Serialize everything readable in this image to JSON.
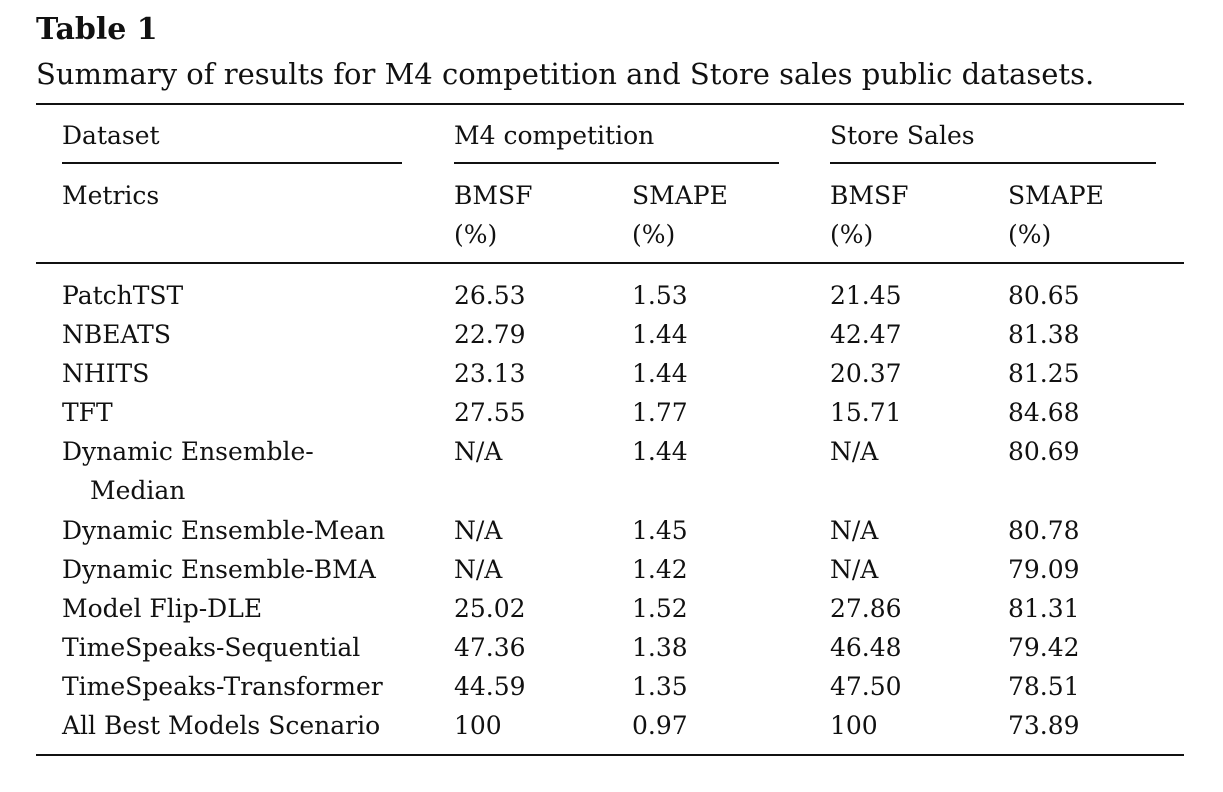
{
  "caption": {
    "label": "Table 1",
    "text": "Summary of results for M4 competition and Store sales public datasets."
  },
  "header": {
    "dataset_label": "Dataset",
    "groups": [
      "M4 competition",
      "Store Sales"
    ],
    "metrics_label": "Metrics",
    "metrics": [
      {
        "name": "BMSF",
        "unit": "(%)"
      },
      {
        "name": "SMAPE",
        "unit": "(%)"
      },
      {
        "name": "BMSF",
        "unit": "(%)"
      },
      {
        "name": "SMAPE",
        "unit": "(%)"
      }
    ]
  },
  "rows": [
    {
      "model": "PatchTST",
      "values": [
        "26.53",
        "1.53",
        "21.45",
        "80.65"
      ]
    },
    {
      "model": "NBEATS",
      "values": [
        "22.79",
        "1.44",
        "42.47",
        "81.38"
      ]
    },
    {
      "model": "NHITS",
      "values": [
        "23.13",
        "1.44",
        "20.37",
        "81.25"
      ]
    },
    {
      "model": "TFT",
      "values": [
        "27.55",
        "1.77",
        "15.71",
        "84.68"
      ]
    },
    {
      "model": "Dynamic Ensemble-",
      "model_cont": "Median",
      "values": [
        "N/A",
        "1.44",
        "N/A",
        "80.69"
      ]
    },
    {
      "model": "Dynamic Ensemble-Mean",
      "values": [
        "N/A",
        "1.45",
        "N/A",
        "80.78"
      ]
    },
    {
      "model": "Dynamic Ensemble-BMA",
      "values": [
        "N/A",
        "1.42",
        "N/A",
        "79.09"
      ]
    },
    {
      "model": "Model Flip-DLE",
      "values": [
        "25.02",
        "1.52",
        "27.86",
        "81.31"
      ]
    },
    {
      "model": "TimeSpeaks-Sequential",
      "values": [
        "47.36",
        "1.38",
        "46.48",
        "79.42"
      ]
    },
    {
      "model": "TimeSpeaks-Transformer",
      "values": [
        "44.59",
        "1.35",
        "47.50",
        "78.51"
      ]
    },
    {
      "model": "All Best Models Scenario",
      "values": [
        "100",
        "0.97",
        "100",
        "73.89"
      ]
    }
  ]
}
